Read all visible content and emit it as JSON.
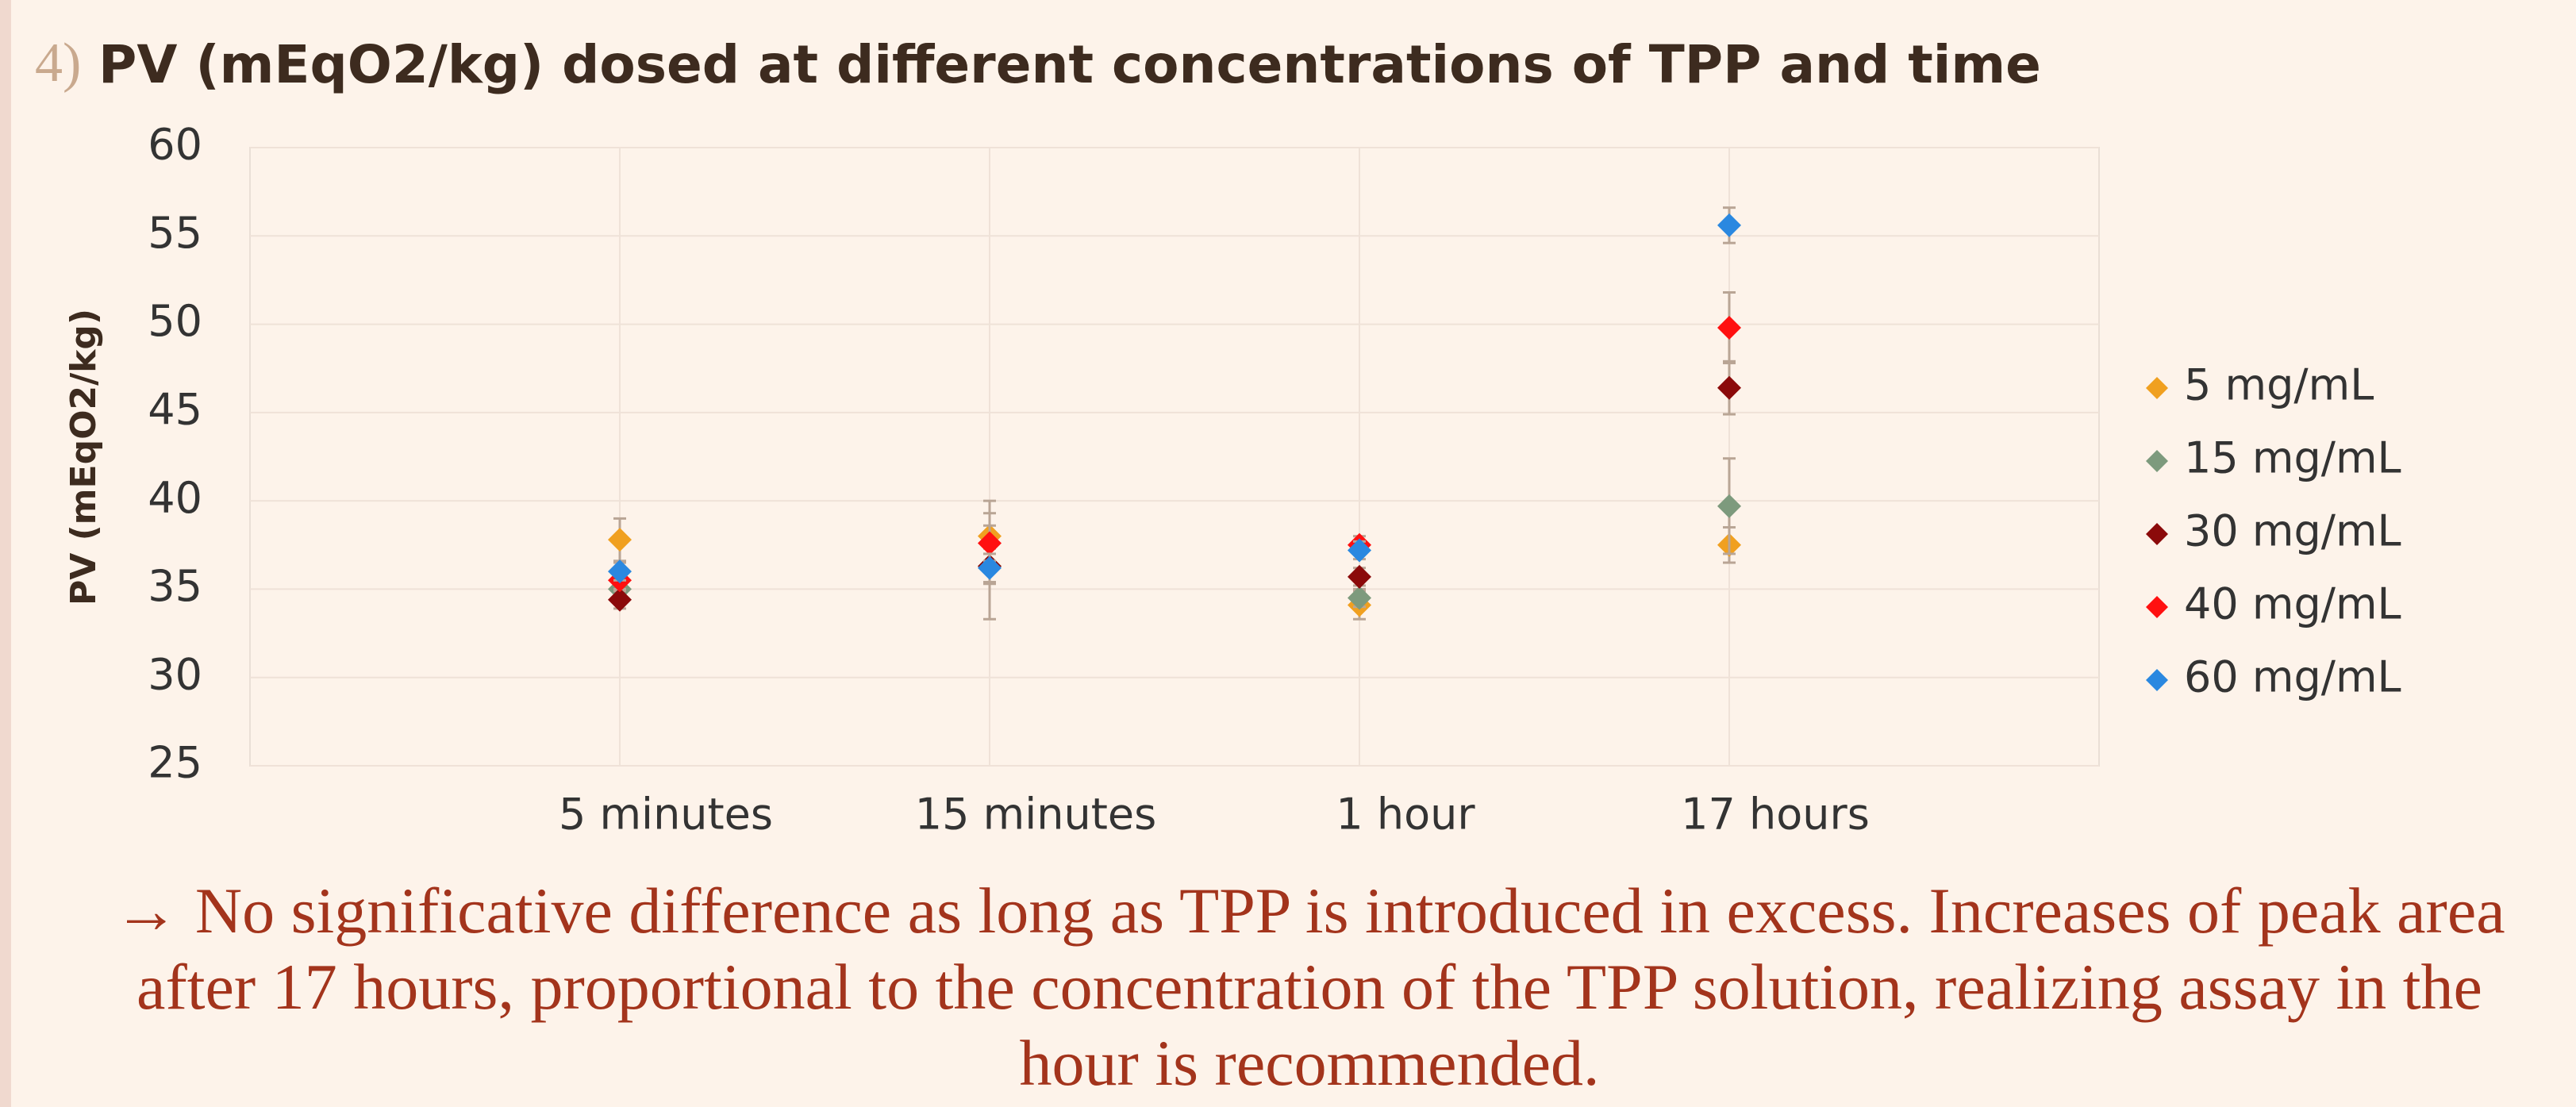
{
  "slide_number": "4)",
  "chart_data": {
    "type": "scatter",
    "title": "PV (mEqO2/kg) dosed at different concentrations of TPP and time",
    "y_label": "PV (mEqO2/kg)",
    "categories": [
      "5 minutes",
      "15 minutes",
      "1 hour",
      "17 hours"
    ],
    "ylim": [
      25,
      60
    ],
    "yticks": [
      25,
      30,
      35,
      40,
      45,
      50,
      55,
      60
    ],
    "grid": true,
    "legend": "right",
    "series": [
      {
        "name": "5 mg/mL",
        "color": "#f0a020",
        "values": [
          37.8,
          38.0,
          34.1,
          37.5
        ],
        "errors": [
          1.2,
          2.0,
          0.8,
          1.0
        ]
      },
      {
        "name": "15 mg/mL",
        "color": "#7d9a7d",
        "values": [
          35.0,
          36.3,
          34.5,
          39.7
        ],
        "errors": [
          0.5,
          3.0,
          0.5,
          2.7
        ]
      },
      {
        "name": "30 mg/mL",
        "color": "#8b0a0a",
        "values": [
          34.4,
          36.3,
          35.7,
          46.4
        ],
        "errors": [
          0.5,
          1.0,
          0.5,
          1.5
        ]
      },
      {
        "name": "40 mg/mL",
        "color": "#ff1010",
        "values": [
          35.5,
          37.6,
          37.5,
          49.8
        ],
        "errors": [
          0.5,
          1.0,
          0.5,
          2.0
        ]
      },
      {
        "name": "60 mg/mL",
        "color": "#2a88e0",
        "values": [
          36.0,
          36.2,
          37.2,
          55.6
        ],
        "errors": [
          0.5,
          0.8,
          0.5,
          1.0
        ]
      }
    ]
  },
  "note": "→ No significative difference as long as TPP is introduced in excess. Increases of peak area after 17 hours, proportional to the concentration of the TPP solution, realizing assay in the hour is recommended."
}
